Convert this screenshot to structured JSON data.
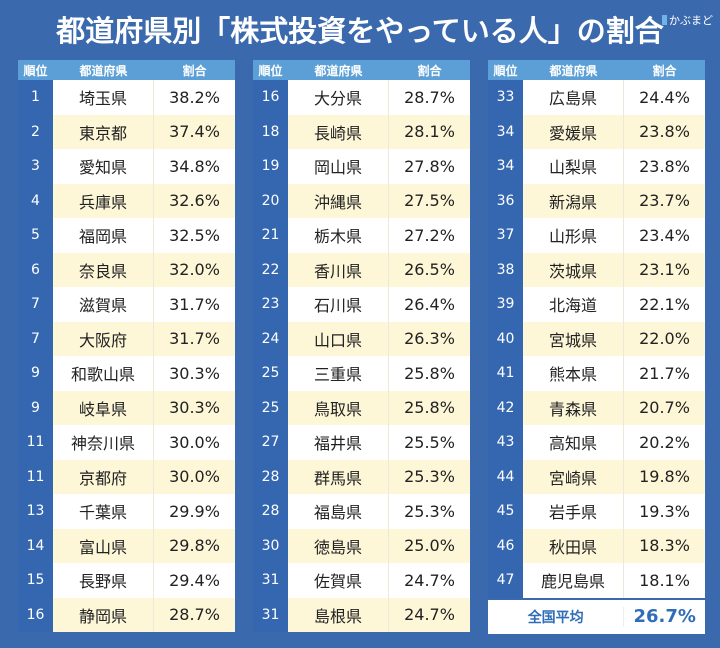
{
  "title": "都道府県別「株式投資をやっている人」の割合",
  "logo": "かぶまど",
  "colors": {
    "background": "#3b69ad",
    "header": "#5b9fd6",
    "rank_column": "#3567b1",
    "row_alt": "#fdf7d8",
    "average_text": "#2f6db8"
  },
  "chart_data": {
    "type": "table",
    "columns": [
      "順位",
      "都道府県",
      "割合"
    ],
    "rows": [
      [
        "1",
        "埼玉県",
        "38.2%"
      ],
      [
        "2",
        "東京都",
        "37.4%"
      ],
      [
        "3",
        "愛知県",
        "34.8%"
      ],
      [
        "4",
        "兵庫県",
        "32.6%"
      ],
      [
        "5",
        "福岡県",
        "32.5%"
      ],
      [
        "6",
        "奈良県",
        "32.0%"
      ],
      [
        "7",
        "滋賀県",
        "31.7%"
      ],
      [
        "7",
        "大阪府",
        "31.7%"
      ],
      [
        "9",
        "和歌山県",
        "30.3%"
      ],
      [
        "9",
        "岐阜県",
        "30.3%"
      ],
      [
        "11",
        "神奈川県",
        "30.0%"
      ],
      [
        "11",
        "京都府",
        "30.0%"
      ],
      [
        "13",
        "千葉県",
        "29.9%"
      ],
      [
        "14",
        "富山県",
        "29.8%"
      ],
      [
        "15",
        "長野県",
        "29.4%"
      ],
      [
        "16",
        "静岡県",
        "28.7%"
      ],
      [
        "16",
        "大分県",
        "28.7%"
      ],
      [
        "18",
        "長崎県",
        "28.1%"
      ],
      [
        "19",
        "岡山県",
        "27.8%"
      ],
      [
        "20",
        "沖縄県",
        "27.5%"
      ],
      [
        "21",
        "栃木県",
        "27.2%"
      ],
      [
        "22",
        "香川県",
        "26.5%"
      ],
      [
        "23",
        "石川県",
        "26.4%"
      ],
      [
        "24",
        "山口県",
        "26.3%"
      ],
      [
        "25",
        "三重県",
        "25.8%"
      ],
      [
        "25",
        "鳥取県",
        "25.8%"
      ],
      [
        "27",
        "福井県",
        "25.5%"
      ],
      [
        "28",
        "群馬県",
        "25.3%"
      ],
      [
        "28",
        "福島県",
        "25.3%"
      ],
      [
        "30",
        "徳島県",
        "25.0%"
      ],
      [
        "31",
        "佐賀県",
        "24.7%"
      ],
      [
        "31",
        "島根県",
        "24.7%"
      ],
      [
        "33",
        "広島県",
        "24.4%"
      ],
      [
        "34",
        "愛媛県",
        "23.8%"
      ],
      [
        "34",
        "山梨県",
        "23.8%"
      ],
      [
        "36",
        "新潟県",
        "23.7%"
      ],
      [
        "37",
        "山形県",
        "23.4%"
      ],
      [
        "38",
        "茨城県",
        "23.1%"
      ],
      [
        "39",
        "北海道",
        "22.1%"
      ],
      [
        "40",
        "宮城県",
        "22.0%"
      ],
      [
        "41",
        "熊本県",
        "21.7%"
      ],
      [
        "42",
        "青森県",
        "20.7%"
      ],
      [
        "43",
        "高知県",
        "20.2%"
      ],
      [
        "44",
        "宮崎県",
        "19.8%"
      ],
      [
        "45",
        "岩手県",
        "19.3%"
      ],
      [
        "46",
        "秋田県",
        "18.3%"
      ],
      [
        "47",
        "鹿児島県",
        "18.1%"
      ]
    ],
    "average": {
      "label": "全国平均",
      "value": "26.7%"
    }
  }
}
